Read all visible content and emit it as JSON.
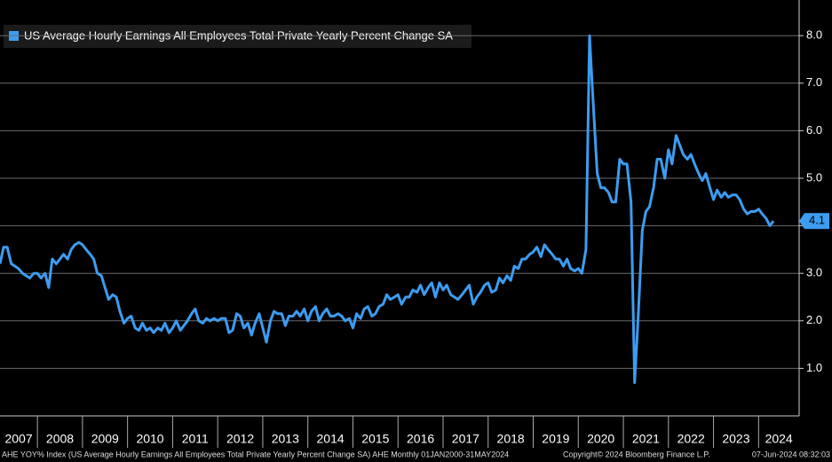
{
  "chart_data": {
    "type": "line",
    "legend": "US Average Hourly Earnings All Employees Total Private Yearly Percent Change SA",
    "footer_left": "AHE YOY% Index (US Average Hourly Earnings All Employees Total Private Yearly Percent Change SA) AHE  Monthly 01JAN2000-31MAY2024",
    "footer_center": "Copyright© 2024 Bloomberg Finance L.P.",
    "footer_right": "07-Jun-2024 08:32:03",
    "xlim": [
      2007.17,
      2024.9
    ],
    "xticks": [
      2007,
      2008,
      2009,
      2010,
      2011,
      2012,
      2013,
      2014,
      2015,
      2016,
      2017,
      2018,
      2019,
      2020,
      2021,
      2022,
      2023,
      2024
    ],
    "ylim": [
      0,
      8.75
    ],
    "yticks": [
      {
        "value": 1,
        "label": "1.0"
      },
      {
        "value": 2,
        "label": "2.0"
      },
      {
        "value": 3,
        "label": "3.0"
      },
      {
        "value": 4,
        "label": "4.0"
      },
      {
        "value": 5,
        "label": "5.0"
      },
      {
        "value": 6,
        "label": "6.0"
      },
      {
        "value": 7,
        "label": "7.0"
      },
      {
        "value": 8,
        "label": "8.0"
      }
    ],
    "grid": true,
    "x": [
      2007.17,
      2007.25,
      2007.33,
      2007.42,
      2007.5,
      2007.58,
      2007.67,
      2007.75,
      2007.83,
      2007.92,
      2008.0,
      2008.08,
      2008.17,
      2008.25,
      2008.33,
      2008.42,
      2008.5,
      2008.58,
      2008.67,
      2008.75,
      2008.83,
      2008.92,
      2009.0,
      2009.08,
      2009.17,
      2009.25,
      2009.33,
      2009.42,
      2009.5,
      2009.58,
      2009.67,
      2009.75,
      2009.83,
      2009.92,
      2010.0,
      2010.08,
      2010.17,
      2010.25,
      2010.33,
      2010.42,
      2010.5,
      2010.58,
      2010.67,
      2010.75,
      2010.83,
      2010.92,
      2011.0,
      2011.08,
      2011.17,
      2011.25,
      2011.33,
      2011.42,
      2011.5,
      2011.58,
      2011.67,
      2011.75,
      2011.83,
      2011.92,
      2012.0,
      2012.08,
      2012.17,
      2012.25,
      2012.33,
      2012.42,
      2012.5,
      2012.58,
      2012.67,
      2012.75,
      2012.83,
      2012.92,
      2013.0,
      2013.08,
      2013.17,
      2013.25,
      2013.33,
      2013.42,
      2013.5,
      2013.58,
      2013.67,
      2013.75,
      2013.83,
      2013.92,
      2014.0,
      2014.08,
      2014.17,
      2014.25,
      2014.33,
      2014.42,
      2014.5,
      2014.58,
      2014.67,
      2014.75,
      2014.83,
      2014.92,
      2015.0,
      2015.08,
      2015.17,
      2015.25,
      2015.33,
      2015.42,
      2015.5,
      2015.58,
      2015.67,
      2015.75,
      2015.83,
      2015.92,
      2016.0,
      2016.08,
      2016.17,
      2016.25,
      2016.33,
      2016.42,
      2016.5,
      2016.58,
      2016.67,
      2016.75,
      2016.83,
      2016.92,
      2017.0,
      2017.08,
      2017.17,
      2017.25,
      2017.33,
      2017.42,
      2017.5,
      2017.58,
      2017.67,
      2017.75,
      2017.83,
      2017.92,
      2018.0,
      2018.08,
      2018.17,
      2018.25,
      2018.33,
      2018.42,
      2018.5,
      2018.58,
      2018.67,
      2018.75,
      2018.83,
      2018.92,
      2019.0,
      2019.08,
      2019.17,
      2019.25,
      2019.33,
      2019.42,
      2019.5,
      2019.58,
      2019.67,
      2019.75,
      2019.83,
      2019.92,
      2020.0,
      2020.08,
      2020.17,
      2020.25,
      2020.33,
      2020.42,
      2020.5,
      2020.58,
      2020.67,
      2020.75,
      2020.83,
      2020.92,
      2021.0,
      2021.08,
      2021.17,
      2021.25,
      2021.33,
      2021.42,
      2021.5,
      2021.58,
      2021.67,
      2021.75,
      2021.83,
      2021.92,
      2022.0,
      2022.08,
      2022.17,
      2022.25,
      2022.33,
      2022.42,
      2022.5,
      2022.58,
      2022.67,
      2022.75,
      2022.83,
      2022.92,
      2023.0,
      2023.08,
      2023.17,
      2023.25,
      2023.33,
      2023.42,
      2023.5,
      2023.58,
      2023.67,
      2023.75,
      2023.83,
      2023.92,
      2024.0,
      2024.08,
      2024.17,
      2024.25,
      2024.33
    ],
    "series": [
      {
        "name": "US Average Hourly Earnings All Employees Total Private Yearly Percent Change SA",
        "color": "#3d9cf0",
        "last_value": {
          "value": 4.1,
          "label": "4.1"
        },
        "values": [
          3.2,
          3.55,
          3.55,
          3.2,
          3.15,
          3.1,
          3.0,
          2.95,
          2.9,
          3.0,
          3.0,
          2.9,
          3.0,
          2.7,
          3.3,
          3.2,
          3.3,
          3.4,
          3.3,
          3.5,
          3.6,
          3.65,
          3.6,
          3.5,
          3.4,
          3.3,
          3.0,
          2.95,
          2.7,
          2.45,
          2.55,
          2.5,
          2.2,
          1.95,
          2.05,
          2.1,
          1.85,
          1.8,
          1.95,
          1.8,
          1.85,
          1.75,
          1.85,
          1.8,
          1.95,
          1.75,
          1.85,
          2.0,
          1.8,
          1.9,
          2.0,
          2.15,
          2.25,
          2.0,
          1.95,
          2.05,
          2.0,
          2.05,
          2.0,
          2.05,
          2.05,
          1.75,
          1.8,
          2.15,
          2.1,
          1.85,
          1.95,
          1.7,
          1.95,
          2.15,
          1.85,
          1.55,
          2.0,
          2.2,
          2.15,
          2.15,
          1.9,
          2.1,
          2.1,
          2.2,
          2.1,
          2.25,
          2.0,
          2.2,
          2.3,
          2.0,
          2.15,
          2.25,
          2.1,
          2.1,
          2.15,
          2.1,
          2.0,
          2.05,
          1.85,
          2.15,
          2.05,
          2.25,
          2.3,
          2.1,
          2.15,
          2.3,
          2.35,
          2.55,
          2.45,
          2.5,
          2.55,
          2.35,
          2.5,
          2.5,
          2.65,
          2.6,
          2.75,
          2.55,
          2.7,
          2.8,
          2.5,
          2.8,
          2.65,
          2.75,
          2.55,
          2.5,
          2.45,
          2.55,
          2.65,
          2.75,
          2.35,
          2.5,
          2.6,
          2.75,
          2.8,
          2.6,
          2.65,
          2.9,
          2.8,
          2.95,
          2.85,
          3.15,
          3.1,
          3.3,
          3.3,
          3.4,
          3.45,
          3.55,
          3.35,
          3.6,
          3.5,
          3.4,
          3.3,
          3.3,
          3.15,
          3.3,
          3.1,
          3.05,
          3.1,
          3.0,
          3.5,
          8.0,
          6.6,
          5.1,
          4.8,
          4.8,
          4.7,
          4.5,
          4.5,
          5.4,
          5.3,
          5.3,
          4.5,
          0.7,
          2.1,
          3.9,
          4.3,
          4.4,
          4.8,
          5.4,
          5.4,
          5.0,
          5.6,
          5.3,
          5.9,
          5.7,
          5.5,
          5.4,
          5.5,
          5.3,
          5.1,
          4.95,
          5.1,
          4.8,
          4.55,
          4.75,
          4.6,
          4.7,
          4.6,
          4.65,
          4.65,
          4.55,
          4.35,
          4.25,
          4.3,
          4.3,
          4.35,
          4.25,
          4.15,
          4.0,
          4.1
        ]
      }
    ]
  }
}
